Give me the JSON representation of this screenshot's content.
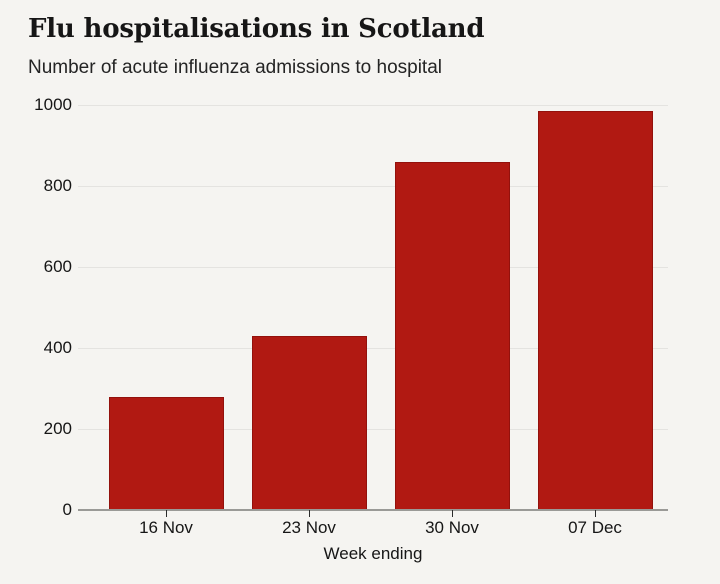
{
  "chart_data": {
    "type": "bar",
    "title": "Flu hospitalisations in Scotland",
    "subtitle": "Number of acute influenza admissions to hospital",
    "categories": [
      "16 Nov",
      "23 Nov",
      "30 Nov",
      "07 Dec"
    ],
    "values": [
      280,
      430,
      860,
      985
    ],
    "xlabel": "Week ending",
    "ylabel": "",
    "ylim": [
      0,
      1000
    ],
    "yticks": [
      0,
      200,
      400,
      600,
      800,
      1000
    ],
    "grid": true,
    "legend": false,
    "bar_color": "#b11912",
    "bar_border_color": "#93110c",
    "background": "#f5f4f1",
    "gridline_color": "#e4e3e0",
    "axis_line_color": "#9a9a97",
    "tick_color": "#2b2b2b",
    "text_color": "#161616"
  }
}
